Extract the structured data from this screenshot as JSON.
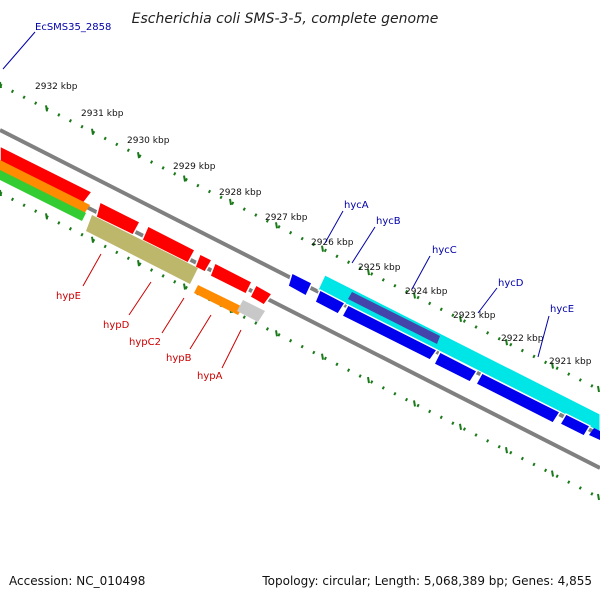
{
  "title": "Escherichia coli SMS-3-5, complete genome",
  "footer": {
    "accession": "Accession: NC_010498",
    "summary": "Topology: circular; Length: 5,068,389 bp; Genes: 4,855"
  },
  "scale_labels": [
    "2932 kbp",
    "2931 kbp",
    "2930 kbp",
    "2929 kbp",
    "2928 kbp",
    "2927 kbp",
    "2926 kbp",
    "2925 kbp",
    "2924 kbp",
    "2923 kbp",
    "2922 kbp",
    "2921 kbp"
  ],
  "genes": [
    {
      "name": "EcSMS35_2858",
      "color": "#0000aa"
    },
    {
      "name": "hypE",
      "color": "#cc0000"
    },
    {
      "name": "hypD",
      "color": "#cc0000"
    },
    {
      "name": "hypC2",
      "color": "#cc0000"
    },
    {
      "name": "hypB",
      "color": "#cc0000"
    },
    {
      "name": "hypA",
      "color": "#cc0000"
    },
    {
      "name": "hycA",
      "color": "#0000aa"
    },
    {
      "name": "hycB",
      "color": "#0000aa"
    },
    {
      "name": "hycC",
      "color": "#0000aa"
    },
    {
      "name": "hycD",
      "color": "#0000aa"
    },
    {
      "name": "hycE",
      "color": "#0000aa"
    }
  ],
  "colors": {
    "forward_strand": "#ff0000",
    "reverse_strand": "#0000ee",
    "backbone": "#808080",
    "tick": "#1a7a1a",
    "cyan_track": "#00e5e5",
    "orange_track": "#ff8c00",
    "green_track": "#33cc33",
    "khaki_track": "#bdb76b"
  }
}
